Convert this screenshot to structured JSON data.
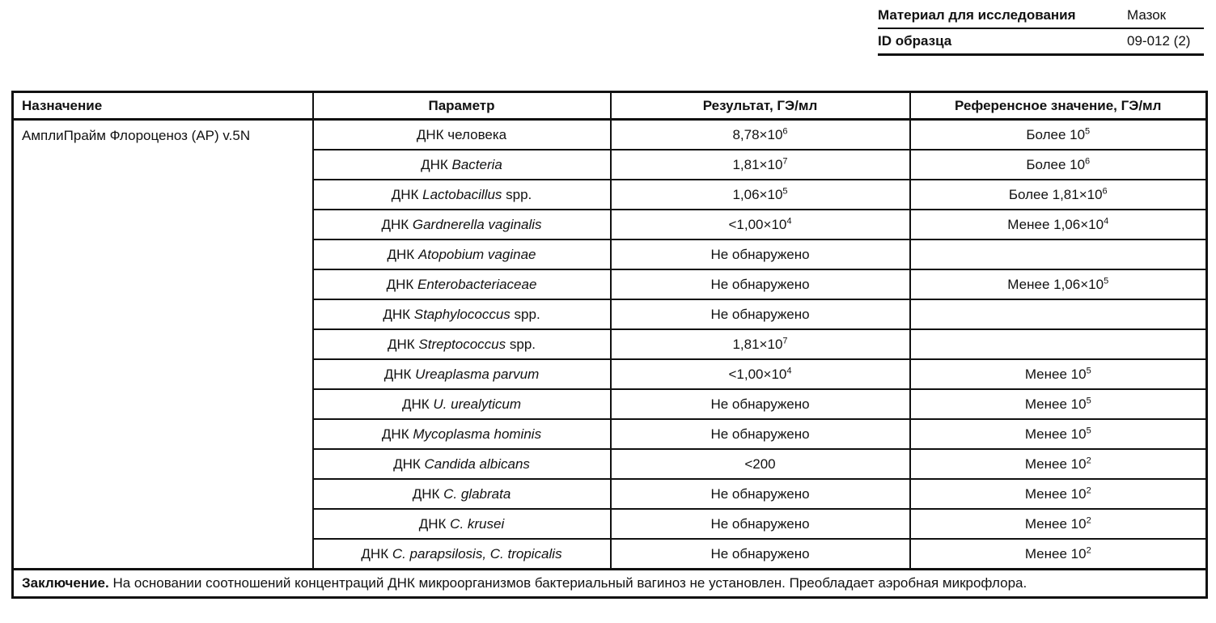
{
  "colors": {
    "text": "#111111",
    "border": "#111111",
    "background": "#ffffff"
  },
  "sample_info": {
    "rows": [
      {
        "label": "Материал для исследования",
        "value": "Мазок"
      },
      {
        "label": "ID образца",
        "value": "09-012 (2)"
      }
    ]
  },
  "table": {
    "headers": {
      "assignment": "Назначение",
      "parameter": "Параметр",
      "result": "Результат, ГЭ/мл",
      "reference": "Референсное значение, ГЭ/мл"
    },
    "assignment": "АмплиПрайм Флороценоз (АР) v.5N",
    "rows": [
      {
        "param_prefix": "ДНК человека",
        "param_italic": "",
        "param_suffix": "",
        "result_base": "8,78×10",
        "result_sup": "6",
        "ref_base": "Более 10",
        "ref_sup": "5"
      },
      {
        "param_prefix": "ДНК ",
        "param_italic": "Bacteria",
        "param_suffix": "",
        "result_base": "1,81×10",
        "result_sup": "7",
        "ref_base": "Более 10",
        "ref_sup": "6"
      },
      {
        "param_prefix": "ДНК ",
        "param_italic": "Lactobacillus",
        "param_suffix": " spp.",
        "result_base": "1,06×10",
        "result_sup": "5",
        "ref_base": "Более 1,81×10",
        "ref_sup": "6"
      },
      {
        "param_prefix": "ДНК ",
        "param_italic": "Gardnerella vaginalis",
        "param_suffix": "",
        "result_base": "<1,00×10",
        "result_sup": "4",
        "ref_base": "Менее 1,06×10",
        "ref_sup": "4"
      },
      {
        "param_prefix": "ДНК ",
        "param_italic": "Atopobium vaginae",
        "param_suffix": "",
        "result_base": "Не обнаружено",
        "result_sup": "",
        "ref_base": "",
        "ref_sup": ""
      },
      {
        "param_prefix": "ДНК ",
        "param_italic": "Enterobacteriaceae",
        "param_suffix": "",
        "result_base": "Не обнаружено",
        "result_sup": "",
        "ref_base": "Менее 1,06×10",
        "ref_sup": "5"
      },
      {
        "param_prefix": "ДНК ",
        "param_italic": "Staphylococcus",
        "param_suffix": " spp.",
        "result_base": "Не обнаружено",
        "result_sup": "",
        "ref_base": "",
        "ref_sup": ""
      },
      {
        "param_prefix": "ДНК ",
        "param_italic": "Streptococcus",
        "param_suffix": " spp.",
        "result_base": "1,81×10",
        "result_sup": "7",
        "ref_base": "",
        "ref_sup": ""
      },
      {
        "param_prefix": "ДНК ",
        "param_italic": "Ureaplasma parvum",
        "param_suffix": "",
        "result_base": "<1,00×10",
        "result_sup": "4",
        "ref_base": "Менее 10",
        "ref_sup": "5"
      },
      {
        "param_prefix": "ДНК ",
        "param_italic": "U. urealyticum",
        "param_suffix": "",
        "result_base": "Не обнаружено",
        "result_sup": "",
        "ref_base": "Менее 10",
        "ref_sup": "5"
      },
      {
        "param_prefix": "ДНК ",
        "param_italic": "Mycoplasma hominis",
        "param_suffix": "",
        "result_base": "Не обнаружено",
        "result_sup": "",
        "ref_base": "Менее 10",
        "ref_sup": "5"
      },
      {
        "param_prefix": "ДНК ",
        "param_italic": "Candida albicans",
        "param_suffix": "",
        "result_base": "<200",
        "result_sup": "",
        "ref_base": "Менее 10",
        "ref_sup": "2"
      },
      {
        "param_prefix": "ДНК ",
        "param_italic": "C. glabrata",
        "param_suffix": "",
        "result_base": "Не обнаружено",
        "result_sup": "",
        "ref_base": "Менее 10",
        "ref_sup": "2"
      },
      {
        "param_prefix": "ДНК ",
        "param_italic": "C. krusei",
        "param_suffix": "",
        "result_base": "Не обнаружено",
        "result_sup": "",
        "ref_base": "Менее 10",
        "ref_sup": "2"
      },
      {
        "param_prefix": "ДНК ",
        "param_italic": "C. parapsilosis, C. tropicalis",
        "param_suffix": "",
        "result_base": "Не обнаружено",
        "result_sup": "",
        "ref_base": "Менее 10",
        "ref_sup": "2"
      }
    ],
    "conclusion_label": "Заключение.",
    "conclusion_text": " На основании соотношений концентраций ДНК микроорганизмов бактериальный вагиноз не установлен. Преобладает аэробная микрофлора."
  }
}
